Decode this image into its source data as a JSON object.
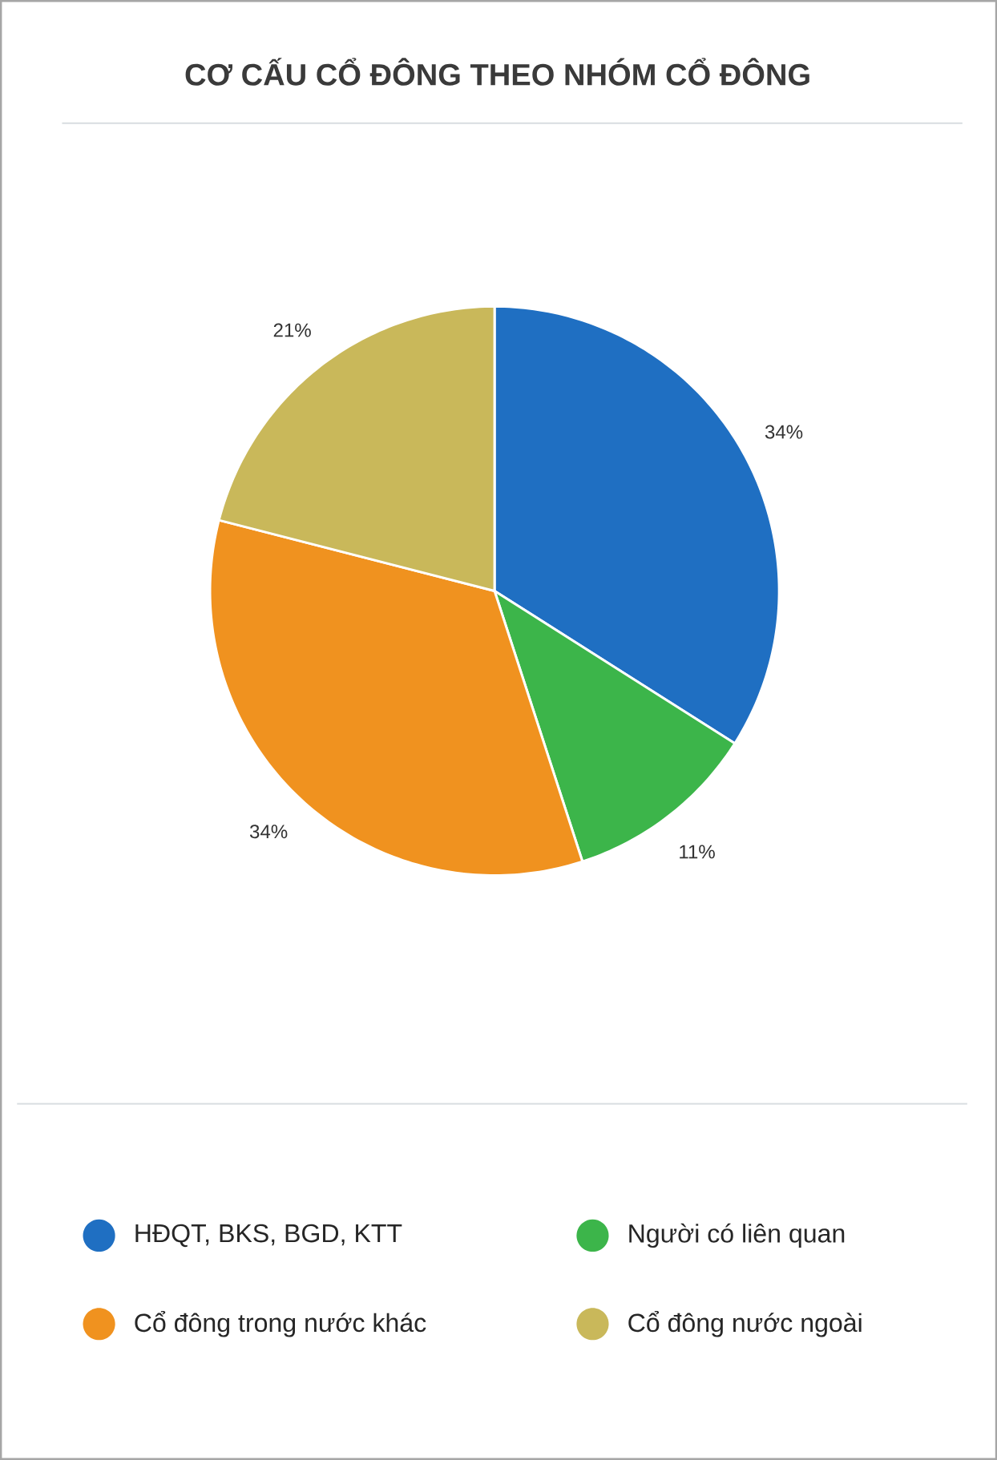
{
  "chart_data": {
    "type": "pie",
    "title": "CƠ CẤU CỔ ĐÔNG THEO NHÓM CỔ ĐÔNG",
    "categories": [
      "HĐQT, BKS, BGD, KTT",
      "Người có liên quan",
      "Cổ đông trong nước khác",
      "Cổ đông nước ngoài"
    ],
    "values": [
      34,
      11,
      34,
      21
    ],
    "colors": [
      "#1f6fc2",
      "#3cb54a",
      "#f0921f",
      "#c9b85a"
    ],
    "value_labels": [
      "34%",
      "11%",
      "34%",
      "21%"
    ],
    "legend": "bottom"
  }
}
